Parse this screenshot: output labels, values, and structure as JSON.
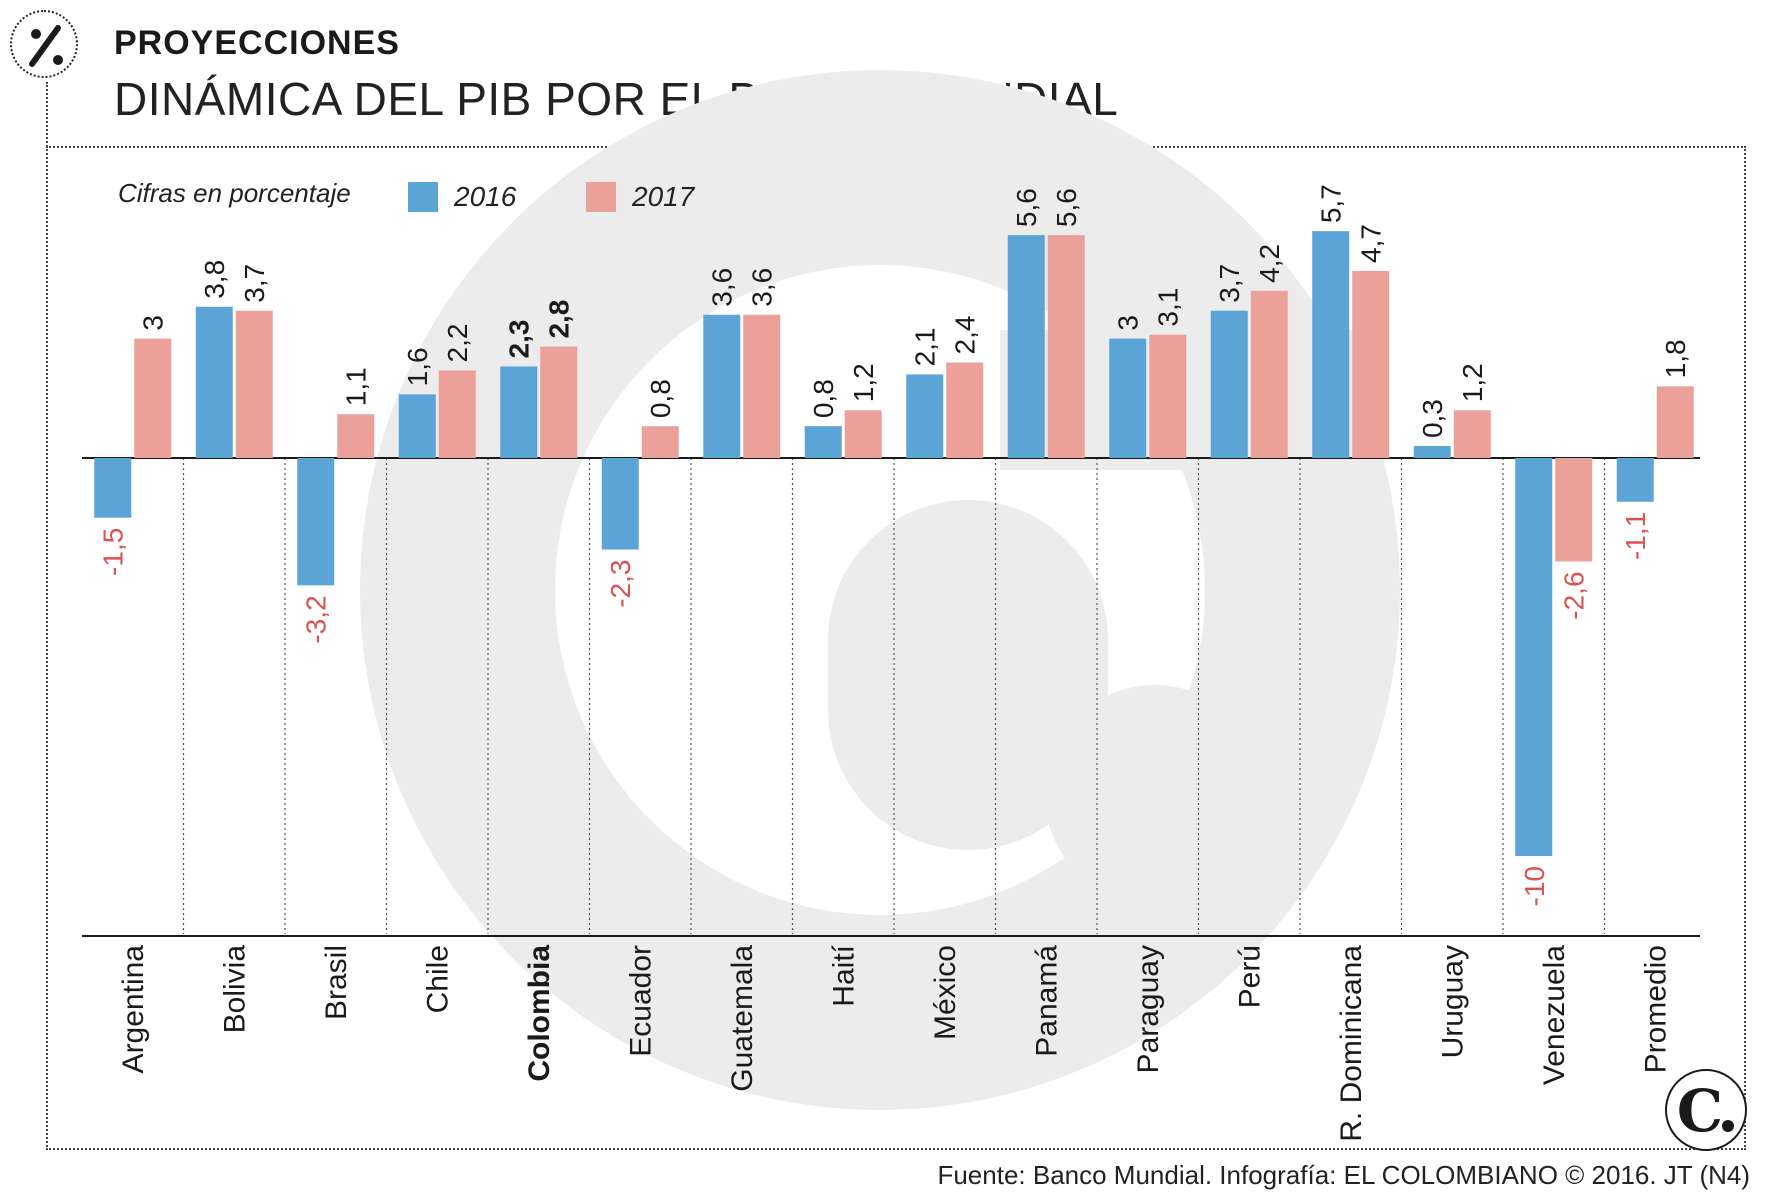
{
  "header": {
    "icon": "percent-icon",
    "kicker": "PROYECCIONES",
    "title": "DINÁMICA DEL PIB POR EL BANCO MUNDIAL"
  },
  "source": "Fuente: Banco Mundial. Infografía: EL COLOMBIANO © 2016. JT (N4)",
  "colors": {
    "series_2016": "#5aa5d5",
    "series_2017": "#eba199",
    "negative_label": "#d9534f",
    "watermark": "#ececec"
  },
  "chart_data": {
    "type": "bar",
    "note_label": "Cifras en porcentaje",
    "categories": [
      "Argentina",
      "Bolivia",
      "Brasil",
      "Chile",
      "Colombia",
      "Ecuador",
      "Guatemala",
      "Haití",
      "México",
      "Panamá",
      "Paraguay",
      "Perú",
      "R. Dominicana",
      "Uruguay",
      "Venezuela",
      "Promedio"
    ],
    "highlight_category": "Colombia",
    "series": [
      {
        "name": "2016",
        "values": [
          -1.5,
          3.8,
          -3.2,
          1.6,
          2.3,
          -2.3,
          3.6,
          0.8,
          2.1,
          5.6,
          3,
          3.7,
          5.7,
          0.3,
          -10,
          -1.1
        ]
      },
      {
        "name": "2017",
        "values": [
          3,
          3.7,
          1.1,
          2.2,
          2.8,
          0.8,
          3.6,
          1.2,
          2.4,
          5.6,
          3.1,
          4.2,
          4.7,
          1.2,
          -2.6,
          1.8
        ]
      }
    ],
    "data_labels": [
      [
        "-1,5",
        "3,8",
        "-3,2",
        "1,6",
        "2,3",
        "-2,3",
        "3,6",
        "0,8",
        "2,1",
        "5,6",
        "3",
        "3,7",
        "5,7",
        "0,3",
        "-10",
        "-1,1"
      ],
      [
        "3",
        "3,7",
        "1,1",
        "2,2",
        "2,8",
        "0,8",
        "3,6",
        "1,2",
        "2,4",
        "5,6",
        "3,1",
        "4,2",
        "4,7",
        "1,2",
        "-2,6",
        "1,8"
      ]
    ],
    "ylim": [
      -12,
      6
    ],
    "legend": "top-left",
    "grid": false,
    "logo": "el-colombiano-c-logo"
  }
}
